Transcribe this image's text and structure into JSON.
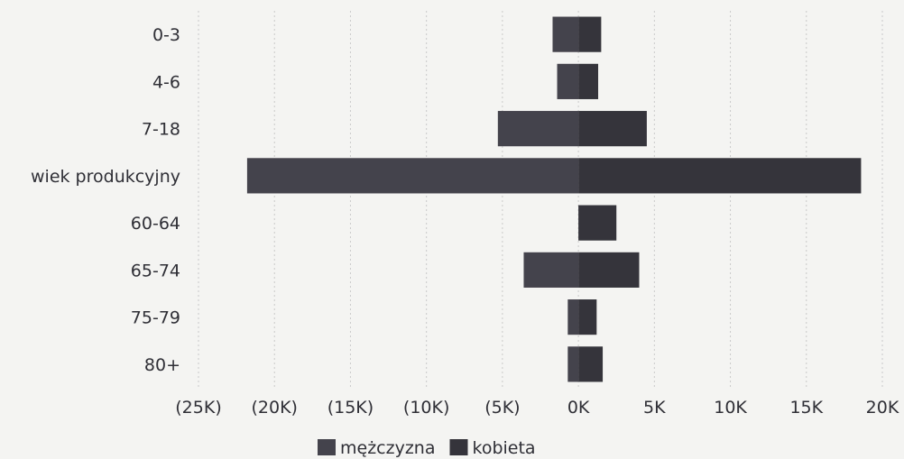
{
  "chart_data": {
    "type": "bar",
    "orientation": "horizontal",
    "stacked": "diverging",
    "categories": [
      "0-3",
      "4-6",
      "7-18",
      "wiek produkcyjny",
      "60-64",
      "65-74",
      "75-79",
      "80+"
    ],
    "series": [
      {
        "name": "mężczyzna",
        "values": [
          -1700,
          -1400,
          -5300,
          -21800,
          0,
          -3600,
          -700,
          -700
        ],
        "color": "#44434c"
      },
      {
        "name": "kobieta",
        "values": [
          1500,
          1300,
          4500,
          18600,
          2500,
          4000,
          1200,
          1600
        ],
        "color": "#35343b"
      }
    ],
    "xlim": [
      -25000,
      20000
    ],
    "xticks": [
      -25000,
      -20000,
      -15000,
      -10000,
      -5000,
      0,
      5000,
      10000,
      15000,
      20000
    ],
    "xtick_labels": [
      "(25K)",
      "(20K)",
      "(15K)",
      "(10K)",
      "(5K)",
      "0K",
      "5K",
      "10K",
      "15K",
      "20K"
    ],
    "grid": true,
    "legend_position": "bottom-center"
  }
}
